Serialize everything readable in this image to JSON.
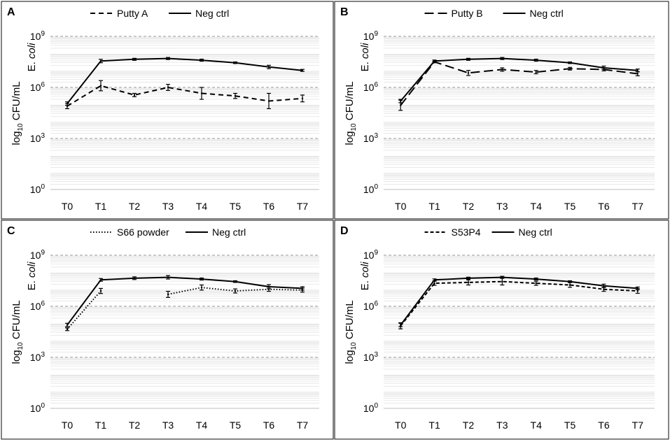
{
  "figure": {
    "y_axis": {
      "title_prefix": "log",
      "title_sub": "10",
      "title_suffix": " CFU/mL",
      "species": "E. coli",
      "tick_base": "10",
      "tick_exponents": [
        "0",
        "3",
        "6",
        "9"
      ]
    }
  },
  "chart_data": [
    {
      "type": "line",
      "panel_label": "A",
      "categories": [
        "T0",
        "T1",
        "T2",
        "T3",
        "T4",
        "T5",
        "T6",
        "T7"
      ],
      "ylim_log10": [
        0,
        9
      ],
      "y_scale": "log10",
      "gridlines": "dashed at 10^3, 10^6, 10^9; light minor lines",
      "legend_placement": "top-center",
      "series": [
        {
          "name": "Putty A",
          "style": "dashed",
          "log10_values": [
            4.9,
            6.1,
            5.55,
            6.0,
            5.65,
            5.5,
            5.2,
            5.35
          ],
          "log10_errors": [
            0.15,
            0.3,
            0.1,
            0.18,
            0.35,
            0.15,
            0.45,
            0.2
          ]
        },
        {
          "name": "Neg ctrl",
          "style": "solid",
          "log10_values": [
            5.05,
            7.55,
            7.65,
            7.7,
            7.6,
            7.45,
            7.2,
            7.0
          ],
          "log10_errors": [
            0.1,
            0.1,
            0.06,
            0.06,
            0.06,
            0.05,
            0.1,
            0.06
          ]
        }
      ]
    },
    {
      "type": "line",
      "panel_label": "B",
      "categories": [
        "T0",
        "T1",
        "T2",
        "T3",
        "T4",
        "T5",
        "T6",
        "T7"
      ],
      "ylim_log10": [
        0,
        9
      ],
      "y_scale": "log10",
      "gridlines": "dashed at 10^3, 10^6, 10^9; light minor lines",
      "legend_placement": "top-center",
      "series": [
        {
          "name": "Putty B",
          "style": "long-dashed",
          "log10_values": [
            4.95,
            7.5,
            6.85,
            7.05,
            6.9,
            7.1,
            7.05,
            6.8
          ],
          "log10_errors": [
            0.3,
            0.05,
            0.15,
            0.1,
            0.1,
            0.08,
            0.08,
            0.12
          ]
        },
        {
          "name": "Neg ctrl",
          "style": "solid",
          "log10_values": [
            5.2,
            7.55,
            7.65,
            7.7,
            7.6,
            7.45,
            7.15,
            7.0
          ],
          "log10_errors": [
            0.1,
            0.06,
            0.06,
            0.06,
            0.06,
            0.05,
            0.1,
            0.08
          ]
        }
      ]
    },
    {
      "type": "line",
      "panel_label": "C",
      "categories": [
        "T0",
        "T1",
        "T2",
        "T3",
        "T4",
        "T5",
        "T6",
        "T7"
      ],
      "ylim_log10": [
        0,
        9
      ],
      "y_scale": "log10",
      "gridlines": "dashed at 10^3, 10^6, 10^9; light minor lines",
      "legend_placement": "top-center",
      "series": [
        {
          "name": "S66 powder",
          "style": "dotted",
          "log10_values": [
            4.65,
            6.9,
            null,
            6.7,
            7.1,
            6.9,
            7.0,
            6.95
          ],
          "log10_errors": [
            0.08,
            0.15,
            null,
            0.18,
            0.15,
            0.12,
            0.12,
            0.12
          ]
        },
        {
          "name": "Neg ctrl",
          "style": "solid",
          "log10_values": [
            4.9,
            7.55,
            7.65,
            7.7,
            7.6,
            7.45,
            7.15,
            7.05
          ],
          "log10_errors": [
            0.1,
            0.08,
            0.08,
            0.1,
            0.06,
            0.05,
            0.12,
            0.1
          ]
        }
      ]
    },
    {
      "type": "line",
      "panel_label": "D",
      "categories": [
        "T0",
        "T1",
        "T2",
        "T3",
        "T4",
        "T5",
        "T6",
        "T7"
      ],
      "ylim_log10": [
        0,
        9
      ],
      "y_scale": "log10",
      "gridlines": "dashed at 10^3, 10^6, 10^9; light minor lines",
      "legend_placement": "top-center",
      "series": [
        {
          "name": "S53P4",
          "style": "short-dashed",
          "log10_values": [
            4.85,
            7.35,
            7.4,
            7.45,
            7.35,
            7.25,
            7.0,
            6.9
          ],
          "log10_errors": [
            0.18,
            0.12,
            0.15,
            0.2,
            0.12,
            0.14,
            0.12,
            0.14
          ]
        },
        {
          "name": "Neg ctrl",
          "style": "solid",
          "log10_values": [
            4.9,
            7.55,
            7.65,
            7.7,
            7.6,
            7.45,
            7.2,
            7.05
          ],
          "log10_errors": [
            0.1,
            0.06,
            0.06,
            0.06,
            0.06,
            0.05,
            0.1,
            0.08
          ]
        }
      ]
    }
  ],
  "colors": {
    "line": "#000000",
    "frame": "#333333",
    "major_grid": "#9a9a9a",
    "minor_grid": "#e3e3e3",
    "background": "#ffffff"
  }
}
